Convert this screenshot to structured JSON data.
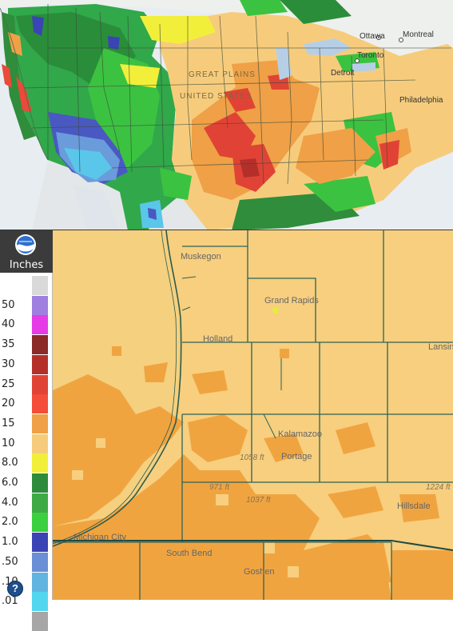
{
  "legend": {
    "unit": "Inches",
    "entries": [
      {
        "label": "",
        "color": "#d9d9d9"
      },
      {
        "label": "50",
        "color": "#9f7fe0"
      },
      {
        "label": "40",
        "color": "#e53ce6"
      },
      {
        "label": "35",
        "color": "#8b2a27"
      },
      {
        "label": "30",
        "color": "#b52f2a"
      },
      {
        "label": "25",
        "color": "#e04335"
      },
      {
        "label": "20",
        "color": "#f44d3a"
      },
      {
        "label": "15",
        "color": "#f0a046"
      },
      {
        "label": "10",
        "color": "#f6cc7c"
      },
      {
        "label": "8.0",
        "color": "#f2ef3b"
      },
      {
        "label": "6.0",
        "color": "#2e8b3c"
      },
      {
        "label": "4.0",
        "color": "#3daa45"
      },
      {
        "label": "2.0",
        "color": "#3ad03f"
      },
      {
        "label": "1.0",
        "color": "#3a44b5"
      },
      {
        "label": ".50",
        "color": "#6a8fd6"
      },
      {
        "label": ".10",
        "color": "#62b4e0"
      },
      {
        "label": ".01",
        "color": "#52d6f0"
      },
      {
        "label": "",
        "color": "#a6a6a6"
      }
    ]
  },
  "top_map": {
    "cities": [
      "Ottawa",
      "Montreal",
      "Toronto",
      "Detroit",
      "Philadelphia",
      "GREAT PLAINS",
      "UNITED STATES"
    ]
  },
  "bottom_map": {
    "cities": [
      "Muskegon",
      "Grand Rapids",
      "Holland",
      "Lansing",
      "Kalamazoo",
      "Portage",
      "Hillsdale",
      "Michigan City",
      "South Bend",
      "Goshen"
    ],
    "elevations": [
      "1058 ft",
      "971 ft",
      "1037 ft",
      "1224 ft"
    ]
  }
}
